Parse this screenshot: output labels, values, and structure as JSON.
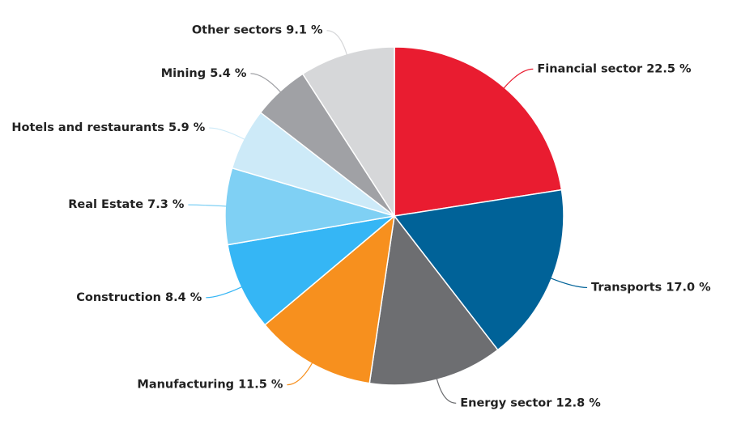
{
  "chart_data": {
    "type": "pie",
    "categories": [
      "Financial sector",
      "Transports",
      "Energy sector",
      "Manufacturing",
      "Construction",
      "Real Estate",
      "Hotels and restaurants",
      "Mining",
      "Other sectors"
    ],
    "values": [
      22.5,
      17.0,
      12.8,
      11.5,
      8.4,
      7.3,
      5.9,
      5.4,
      9.1
    ],
    "value_labels": [
      "22.5 %",
      "17.0 %",
      "12.8 %",
      "11.5 %",
      "8.4 %",
      "7.3 %",
      "5.9 %",
      "5.4 %",
      "9.1 %"
    ],
    "colors": [
      "#e91c30",
      "#006298",
      "#6d6e71",
      "#f7901e",
      "#35b6f5",
      "#7fd0f4",
      "#cdeaf8",
      "#a0a1a5",
      "#d6d7d9"
    ]
  }
}
